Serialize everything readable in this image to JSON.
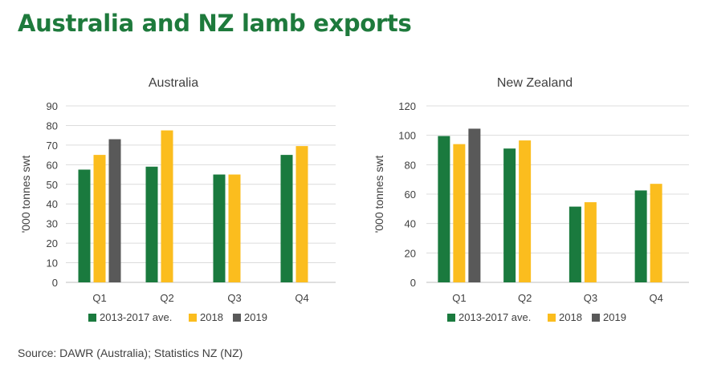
{
  "page": {
    "title": "Australia and NZ lamb exports",
    "source": "Source: DAWR (Australia); Statistics NZ (NZ)"
  },
  "chart_data": [
    {
      "type": "bar",
      "title": "Australia",
      "xlabel": "",
      "ylabel": "'000 tonnes swt",
      "ylim": [
        0,
        90
      ],
      "yticks": [
        0,
        10,
        20,
        30,
        40,
        50,
        60,
        70,
        80,
        90
      ],
      "categories": [
        "Q1",
        "Q2",
        "Q3",
        "Q4"
      ],
      "grid": true,
      "legend_position": "bottom",
      "series": [
        {
          "name": "2013-2017 ave.",
          "color": "#1a7a3e",
          "values": [
            57.5,
            59,
            55,
            65
          ]
        },
        {
          "name": "2018",
          "color": "#fbbd1e",
          "values": [
            65,
            77.5,
            55,
            69.5
          ]
        },
        {
          "name": "2019",
          "color": "#595959",
          "values": [
            73,
            null,
            null,
            null
          ]
        }
      ]
    },
    {
      "type": "bar",
      "title": "New Zealand",
      "xlabel": "",
      "ylabel": "'000 tonnes swt",
      "ylim": [
        0,
        120
      ],
      "yticks": [
        0,
        20,
        40,
        60,
        80,
        100,
        120
      ],
      "categories": [
        "Q1",
        "Q2",
        "Q3",
        "Q4"
      ],
      "grid": true,
      "legend_position": "bottom",
      "series": [
        {
          "name": "2013-2017 ave.",
          "color": "#1a7a3e",
          "values": [
            99.5,
            91,
            51.5,
            62.5
          ]
        },
        {
          "name": "2018",
          "color": "#fbbd1e",
          "values": [
            94,
            96.5,
            54.5,
            67
          ]
        },
        {
          "name": "2019",
          "color": "#595959",
          "values": [
            104.5,
            null,
            null,
            null
          ]
        }
      ]
    }
  ]
}
